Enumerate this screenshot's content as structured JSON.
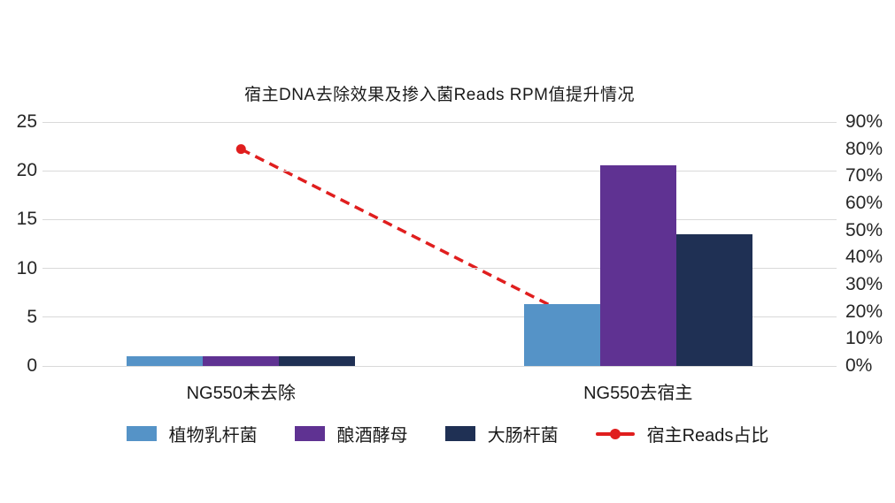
{
  "chart_data": {
    "type": "bar",
    "title": "宿主DNA去除效果及掺入菌Reads RPM值提升情况",
    "categories": [
      "NG550未去除",
      "NG550去宿主"
    ],
    "series": [
      {
        "name": "植物乳杆菌",
        "type": "bar",
        "color": "#5593C7",
        "values": [
          1.0,
          6.3
        ]
      },
      {
        "name": "酿酒酵母",
        "type": "bar",
        "color": "#5F3292",
        "values": [
          1.0,
          20.6
        ]
      },
      {
        "name": "大肠杆菌",
        "type": "bar",
        "color": "#1F3054",
        "values": [
          1.0,
          13.5
        ]
      },
      {
        "name": "宿主Reads占比",
        "type": "line",
        "axis": "right",
        "color": "#E01E1E",
        "line_style": "dashed",
        "values_percent": [
          80,
          6
        ]
      }
    ],
    "left_axis": {
      "min": 0,
      "max": 25,
      "step": 5,
      "ticks": [
        "25",
        "20",
        "15",
        "10",
        "5",
        "0"
      ]
    },
    "right_axis": {
      "min": 0,
      "max": 90,
      "step": 10,
      "unit": "%",
      "ticks": [
        "90%",
        "80%",
        "70%",
        "60%",
        "50%",
        "40%",
        "30%",
        "20%",
        "10%",
        "0%"
      ]
    },
    "grid": true,
    "legend_position": "bottom",
    "background": "#FFFFFF",
    "gridline_color": "#D9D9D9"
  }
}
